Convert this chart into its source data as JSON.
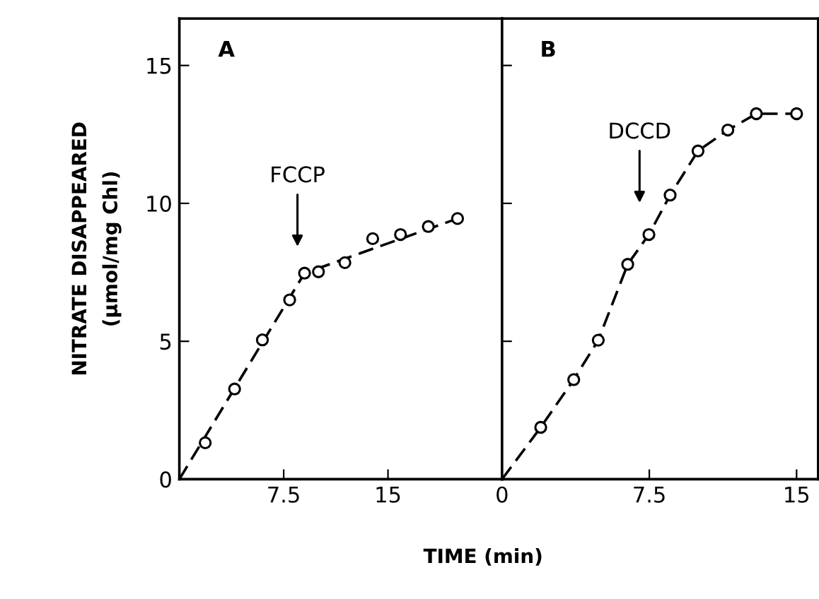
{
  "chart_data": [
    {
      "type": "scatter",
      "title": "A",
      "ylabel": "NITRATE DISAPPEARED\n(μmol/mg Chl)",
      "xlabel": "TIME (min)",
      "series": [
        {
          "type": "line",
          "color": "#000000",
          "line_style": "dashed",
          "marker": "none",
          "x": [
            0,
            9.0,
            20.0
          ],
          "values": [
            0,
            7.47,
            9.45
          ]
        },
        {
          "color": "#000000",
          "marker": "circle",
          "x": [
            1.86,
            3.97,
            5.97,
            7.93,
            9.0,
            10.0,
            11.9,
            13.9,
            15.9,
            17.9,
            20.0
          ],
          "values": [
            1.32,
            3.27,
            5.05,
            6.5,
            7.47,
            7.52,
            7.85,
            8.72,
            8.87,
            9.16,
            9.45
          ]
        }
      ],
      "annotations": [
        "FCCP"
      ],
      "xlim": [
        0,
        23.2
      ],
      "ylim": [
        0,
        16.7
      ],
      "xticks": [
        7.5,
        15
      ],
      "yticks": [
        0,
        5,
        10,
        15
      ],
      "grid": false,
      "legend": false
    },
    {
      "type": "scatter",
      "title": "B",
      "series": [
        {
          "type": "line",
          "color": "#000000",
          "line_style": "dashed",
          "marker": "none",
          "x": [
            0,
            1.97,
            3.65,
            4.9,
            6.4,
            7.48,
            8.56,
            9.98,
            11.5,
            12.95,
            15.0
          ],
          "values": [
            0,
            1.88,
            3.61,
            5.04,
            7.79,
            8.87,
            10.3,
            11.9,
            12.66,
            13.25,
            13.25
          ]
        },
        {
          "color": "#000000",
          "marker": "circle",
          "x": [
            1.97,
            3.65,
            4.9,
            6.4,
            7.48,
            8.56,
            9.98,
            11.5,
            12.95,
            15.0
          ],
          "values": [
            1.88,
            3.61,
            5.04,
            7.79,
            8.87,
            10.3,
            11.9,
            12.66,
            13.25,
            13.25
          ]
        }
      ],
      "annotations": [
        "DCCD"
      ],
      "xlim": [
        0,
        16.1
      ],
      "ylim": [
        0,
        16.7
      ],
      "xticks": [
        0,
        7.5,
        15
      ],
      "yticks": [
        {
          "value": 0,
          "label": null
        },
        {
          "value": 5,
          "label": null
        },
        {
          "value": 10,
          "label": null
        },
        {
          "value": 15,
          "label": null
        }
      ],
      "tick_labels": "x",
      "grid": false,
      "legend": false
    }
  ]
}
